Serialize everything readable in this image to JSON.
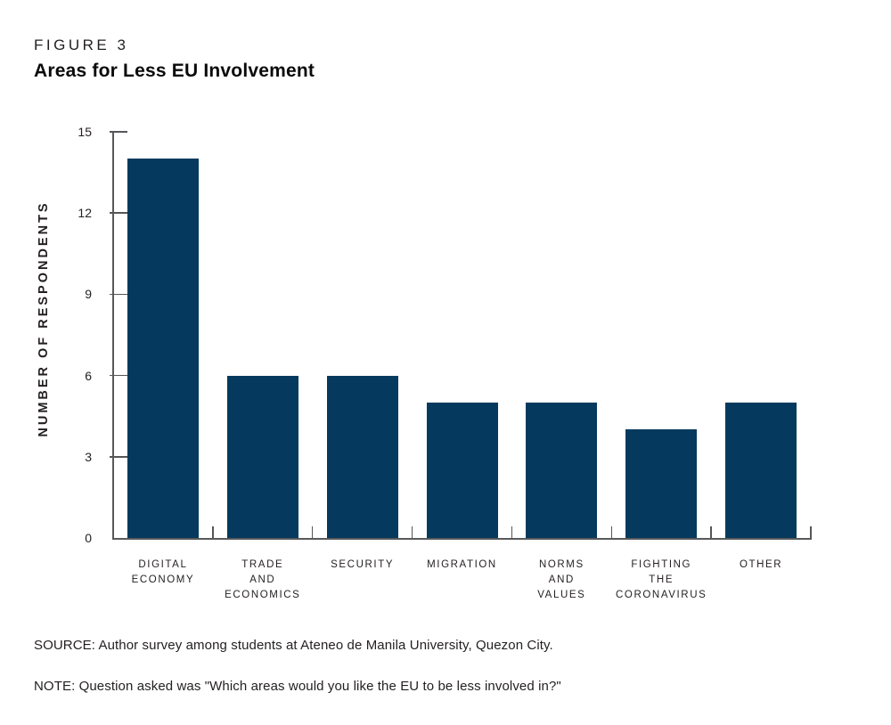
{
  "header": {
    "figure_label": "FIGURE 3",
    "title": "Areas for Less EU Involvement"
  },
  "chart_data": {
    "type": "bar",
    "title": "Areas for Less EU Involvement",
    "categories": [
      "DIGITAL\nECONOMY",
      "TRADE\nAND\nECONOMICS",
      "SECURITY",
      "MIGRATION",
      "NORMS\nAND\nVALUES",
      "FIGHTING\nTHE\nCORONAVIRUS",
      "OTHER"
    ],
    "values": [
      14,
      6,
      6,
      5,
      5,
      4,
      5
    ],
    "xlabel": "",
    "ylabel": "NUMBER OF RESPONDENTS",
    "ylim": [
      0,
      15
    ],
    "yticks": [
      0,
      3,
      6,
      9,
      12,
      15
    ],
    "grid": false,
    "legend": "none",
    "bar_color": "#053a5e",
    "axis_color": "#58595b",
    "text_color": "#231f20"
  },
  "footer": {
    "source": "SOURCE: Author survey among students at Ateneo de Manila University, Quezon City.",
    "note": "NOTE: Question asked was \"Which areas would you like the EU to be less involved in?\""
  }
}
